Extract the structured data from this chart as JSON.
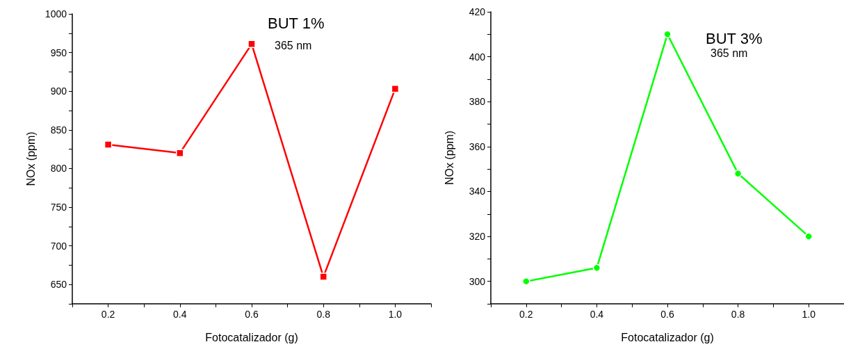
{
  "chart_data": [
    {
      "type": "line",
      "xlabel": "Fotocatalizador (g)",
      "ylabel": "NOx (ppm)",
      "annotations": [
        "BUT 1%",
        "365 nm"
      ],
      "x": [
        0.2,
        0.4,
        0.6,
        0.8,
        1.0
      ],
      "series": [
        {
          "color": "#ff0000",
          "values": [
            831,
            820,
            961,
            660,
            903
          ]
        }
      ],
      "marker": "square",
      "line_style": "solid",
      "xlim": [
        0.1,
        1.1
      ],
      "xticks": [
        {
          "value": 0.1,
          "label": null
        },
        0.2,
        {
          "value": 0.3,
          "label": null
        },
        0.4,
        {
          "value": 0.5,
          "label": null
        },
        0.6,
        {
          "value": 0.7,
          "label": null
        },
        0.8,
        {
          "value": 0.9,
          "label": null
        },
        {
          "value": 1.0,
          "label": "1.0"
        },
        {
          "value": 1.1,
          "label": null
        }
      ],
      "ylim": [
        625,
        1000
      ],
      "yticks": [
        {
          "value": 625,
          "label": null
        },
        650,
        {
          "value": 675,
          "label": null
        },
        700,
        {
          "value": 725,
          "label": null
        },
        750,
        {
          "value": 775,
          "label": null
        },
        800,
        {
          "value": 825,
          "label": null
        },
        850,
        {
          "value": 875,
          "label": null
        },
        900,
        {
          "value": 925,
          "label": null
        },
        950,
        {
          "value": 975,
          "label": null
        },
        1000
      ]
    },
    {
      "type": "line",
      "xlabel": "Fotocatalizador (g)",
      "ylabel": "NOx (ppm)",
      "annotations": [
        "BUT 3%",
        "365 nm"
      ],
      "x": [
        0.2,
        0.4,
        0.6,
        0.8,
        1.0
      ],
      "series": [
        {
          "color": "#00ff00",
          "values": [
            300,
            306,
            410,
            348,
            320
          ]
        }
      ],
      "marker": "circle",
      "line_style": "solid",
      "xlim": [
        0.1,
        1.1
      ],
      "xticks": [
        {
          "value": 0.1,
          "label": null
        },
        0.2,
        {
          "value": 0.3,
          "label": null
        },
        0.4,
        {
          "value": 0.5,
          "label": null
        },
        0.6,
        {
          "value": 0.7,
          "label": null
        },
        0.8,
        {
          "value": 0.9,
          "label": null
        },
        {
          "value": 1.0,
          "label": "1.0"
        },
        {
          "value": 1.1,
          "label": null
        }
      ],
      "ylim": [
        290,
        420
      ],
      "yticks": [
        {
          "value": 290,
          "label": null
        },
        300,
        {
          "value": 310,
          "label": null
        },
        320,
        {
          "value": 330,
          "label": null
        },
        340,
        {
          "value": 350,
          "label": null
        },
        360,
        {
          "value": 370,
          "label": null
        },
        380,
        {
          "value": 390,
          "label": null
        },
        400,
        {
          "value": 410,
          "label": null
        },
        420
      ]
    }
  ]
}
